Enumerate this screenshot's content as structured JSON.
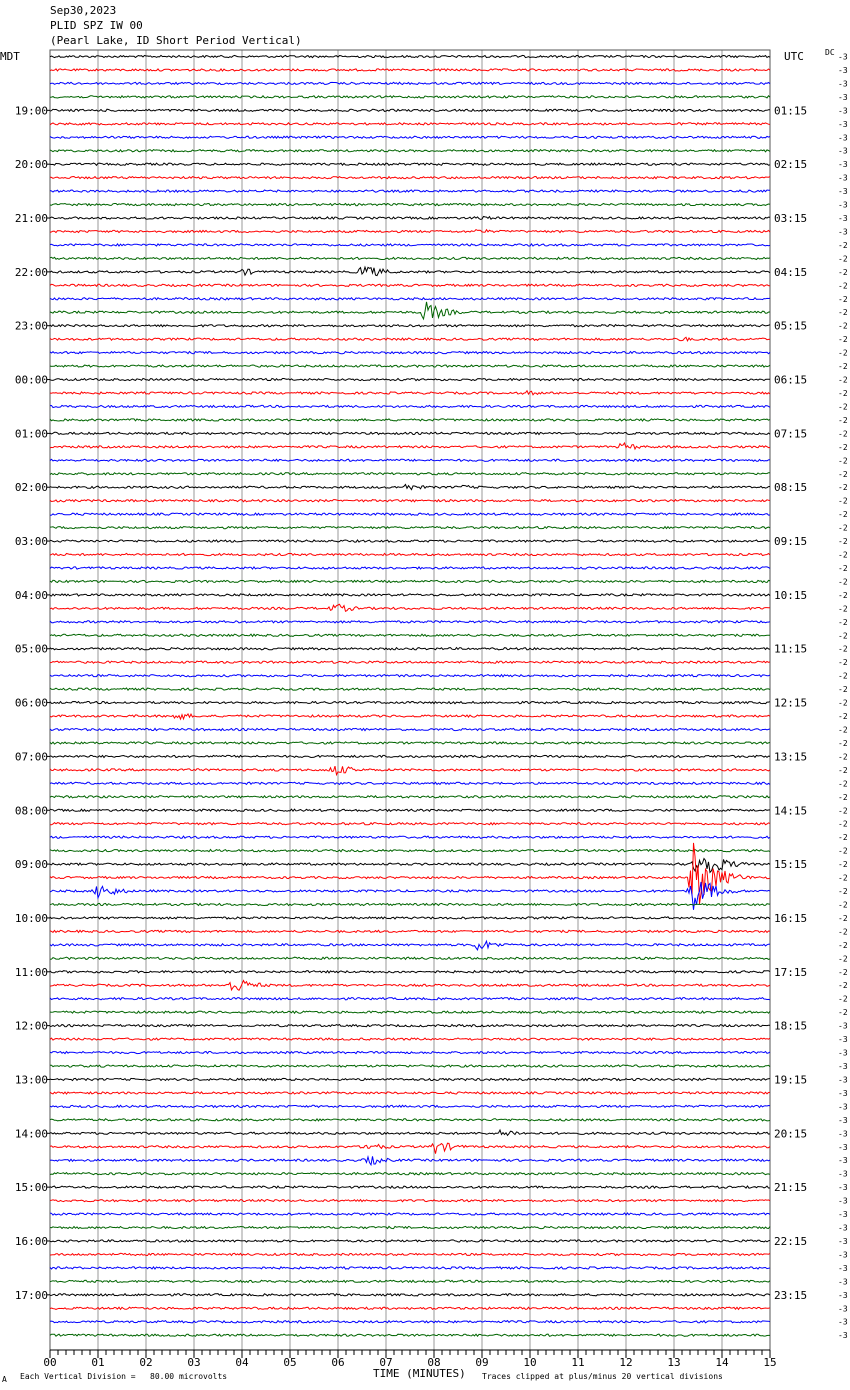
{
  "header": {
    "date": "Sep30,2023",
    "station": "PLID SPZ IW 00",
    "description": "(Pearl Lake, ID Short Period Vertical)"
  },
  "left_tz": "MDT",
  "right_tz": "UTC",
  "dc_label": "DC",
  "footer": {
    "scale_note": "Each Vertical Division =   80.00 microvolts",
    "clip_note": "Traces clipped at plus/minus 20 vertical divisions",
    "mark": "A"
  },
  "chart_data": {
    "type": "line",
    "title": "",
    "xlabel": "TIME (MINUTES)",
    "xlim": [
      0,
      15
    ],
    "x_ticks": [
      "00",
      "01",
      "02",
      "03",
      "04",
      "05",
      "06",
      "07",
      "08",
      "09",
      "10",
      "11",
      "12",
      "13",
      "14",
      "15"
    ],
    "trace_count": 96,
    "trace_colors": [
      "#000000",
      "#ff0000",
      "#0000ff",
      "#006400"
    ],
    "left_hour_labels": [
      "19:00",
      "20:00",
      "21:00",
      "22:00",
      "23:00",
      "00:00",
      "01:00",
      "02:00",
      "03:00",
      "04:00",
      "05:00",
      "06:00",
      "07:00",
      "08:00",
      "09:00",
      "10:00",
      "11:00",
      "12:00",
      "13:00",
      "14:00",
      "15:00",
      "16:00",
      "17:00"
    ],
    "right_hour_labels": [
      "01:15",
      "02:15",
      "03:15",
      "04:15",
      "05:15",
      "06:15",
      "07:15",
      "08:15",
      "09:15",
      "10:15",
      "11:15",
      "12:15",
      "13:15",
      "14:15",
      "15:15",
      "16:15",
      "17:15",
      "18:15",
      "19:15",
      "20:15",
      "21:15",
      "22:15",
      "23:15"
    ],
    "dc_offsets": [
      "-3",
      "-3",
      "-3",
      "-3",
      "-3",
      "-3",
      "-3",
      "-3",
      "-3",
      "-3",
      "-3",
      "-3",
      "-3",
      "-3",
      "-2",
      "-2",
      "-2",
      "-2",
      "-2",
      "-2",
      "-2",
      "-2",
      "-2",
      "-2",
      "-2",
      "-2",
      "-2",
      "-2",
      "-2",
      "-2",
      "-2",
      "-2",
      "-2",
      "-2",
      "-2",
      "-2",
      "-2",
      "-2",
      "-2",
      "-2",
      "-2",
      "-2",
      "-2",
      "-2",
      "-2",
      "-2",
      "-2",
      "-2",
      "-2",
      "-2",
      "-2",
      "-2",
      "-2",
      "-2",
      "-2",
      "-2",
      "-2",
      "-2",
      "-2",
      "-2",
      "-2",
      "-2",
      "-2",
      "-2",
      "-2",
      "-2",
      "-2",
      "-2",
      "-2",
      "-2",
      "-2",
      "-2",
      "-3",
      "-3",
      "-3",
      "-3",
      "-3",
      "-3",
      "-3",
      "-3",
      "-3",
      "-3",
      "-3",
      "-3",
      "-3",
      "-3",
      "-3",
      "-3",
      "-3",
      "-3",
      "-3",
      "-3",
      "-3",
      "-3",
      "-3",
      "-3"
    ],
    "events": [
      {
        "trace": 12,
        "minute": 8.9,
        "amplitude": 3
      },
      {
        "trace": 13,
        "minute": 8.9,
        "amplitude": 3
      },
      {
        "trace": 16,
        "minute": 4.0,
        "amplitude": 4
      },
      {
        "trace": 16,
        "minute": 6.5,
        "amplitude": 9
      },
      {
        "trace": 19,
        "minute": 7.8,
        "amplitude": 12
      },
      {
        "trace": 21,
        "minute": 13.1,
        "amplitude": 3
      },
      {
        "trace": 25,
        "minute": 9.9,
        "amplitude": 3
      },
      {
        "trace": 29,
        "minute": 11.9,
        "amplitude": 5
      },
      {
        "trace": 32,
        "minute": 7.4,
        "amplitude": 4
      },
      {
        "trace": 32,
        "minute": 8.5,
        "amplitude": 3
      },
      {
        "trace": 41,
        "minute": 5.9,
        "amplitude": 6
      },
      {
        "trace": 49,
        "minute": 2.6,
        "amplitude": 5
      },
      {
        "trace": 53,
        "minute": 5.9,
        "amplitude": 7
      },
      {
        "trace": 60,
        "minute": 13.5,
        "amplitude": 22
      },
      {
        "trace": 61,
        "minute": 13.4,
        "amplitude": 40
      },
      {
        "trace": 62,
        "minute": 1.0,
        "amplitude": 9
      },
      {
        "trace": 62,
        "minute": 13.4,
        "amplitude": 20
      },
      {
        "trace": 66,
        "minute": 8.9,
        "amplitude": 7
      },
      {
        "trace": 69,
        "minute": 3.8,
        "amplitude": 10
      },
      {
        "trace": 80,
        "minute": 9.4,
        "amplitude": 5
      },
      {
        "trace": 81,
        "minute": 8.0,
        "amplitude": 8
      },
      {
        "trace": 81,
        "minute": 6.6,
        "amplitude": 5
      },
      {
        "trace": 82,
        "minute": 6.6,
        "amplitude": 6
      }
    ]
  }
}
